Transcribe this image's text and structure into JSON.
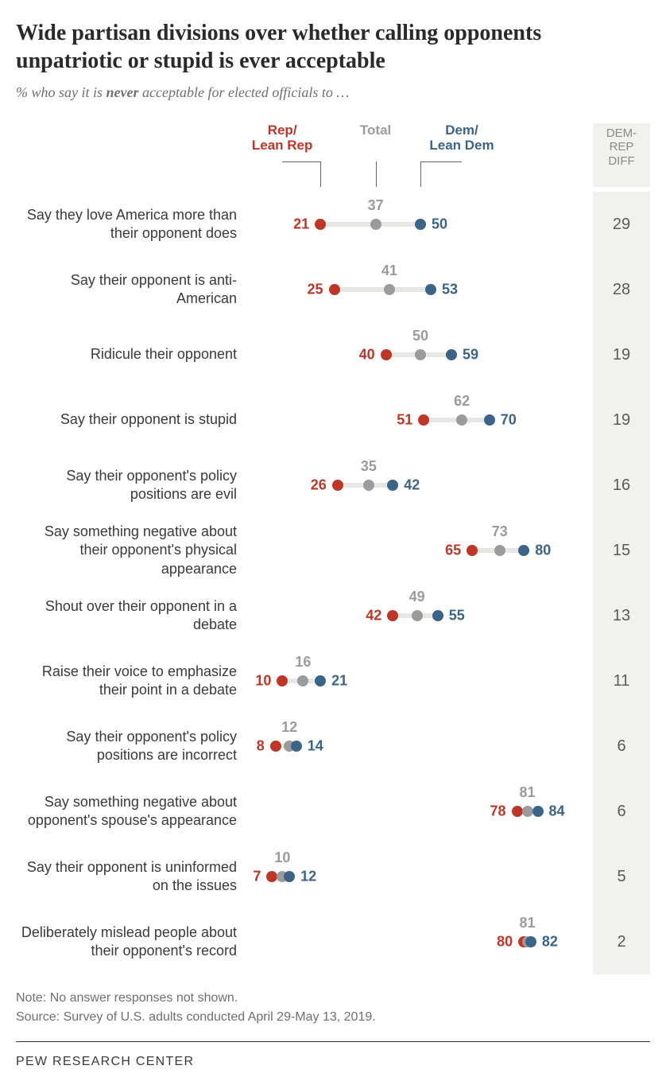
{
  "title": "Wide partisan divisions over whether calling opponents unpatriotic or stupid is ever acceptable",
  "title_fontsize": 28,
  "title_color": "#2a2a2a",
  "subtitle_prefix": "% who say it is ",
  "subtitle_bold": "never",
  "subtitle_suffix": " acceptable for elected officials to …",
  "subtitle_fontsize": 18,
  "legend": {
    "rep": "Rep/\nLean Rep",
    "total": "Total",
    "dem": "Dem/\nLean Dem",
    "diff_header": "DEM-\nREP\nDIFF",
    "fontsize": 17
  },
  "colors": {
    "rep": "#bf3627",
    "total": "#9b9b9b",
    "dem": "#3b6489",
    "track": "#e6e6e3",
    "diff_bg": "#f1f1ee",
    "label": "#3a3a3a",
    "diff_text": "#5a5a5a"
  },
  "axis": {
    "min": 0,
    "max": 100
  },
  "value_fontsize": 18,
  "label_fontsize": 18,
  "diff_fontsize": 20,
  "dot_size": 14,
  "rows": [
    {
      "label": "Say they love America more than their opponent does",
      "rep": 21,
      "total": 37,
      "dem": 50,
      "diff": 29
    },
    {
      "label": "Say their opponent is anti-American",
      "rep": 25,
      "total": 41,
      "dem": 53,
      "diff": 28
    },
    {
      "label": "Ridicule their opponent",
      "rep": 40,
      "total": 50,
      "dem": 59,
      "diff": 19
    },
    {
      "label": "Say their opponent is stupid",
      "rep": 51,
      "total": 62,
      "dem": 70,
      "diff": 19
    },
    {
      "label": "Say their opponent's policy positions are evil",
      "rep": 26,
      "total": 35,
      "dem": 42,
      "diff": 16
    },
    {
      "label": "Say something negative about their opponent's physical appearance",
      "rep": 65,
      "total": 73,
      "dem": 80,
      "diff": 15
    },
    {
      "label": "Shout over their opponent in a debate",
      "rep": 42,
      "total": 49,
      "dem": 55,
      "diff": 13
    },
    {
      "label": "Raise their voice to emphasize their point in a debate",
      "rep": 10,
      "total": 16,
      "dem": 21,
      "diff": 11
    },
    {
      "label": "Say their opponent's policy positions are incorrect",
      "rep": 8,
      "total": 12,
      "dem": 14,
      "diff": 6
    },
    {
      "label": "Say something negative about opponent's spouse's appearance",
      "rep": 78,
      "total": 81,
      "dem": 84,
      "diff": 6
    },
    {
      "label": "Say their opponent is uninformed on the issues",
      "rep": 7,
      "total": 10,
      "dem": 12,
      "diff": 5
    },
    {
      "label": "Deliberately mislead people about their opponent's record",
      "rep": 80,
      "total": 81,
      "dem": 82,
      "diff": 2
    }
  ],
  "note": "Note: No answer responses not shown.",
  "source": "Source: Survey of U.S. adults conducted April 29-May 13, 2019.",
  "brand": "PEW RESEARCH CENTER",
  "footer_fontsize": 16,
  "brand_fontsize": 16
}
